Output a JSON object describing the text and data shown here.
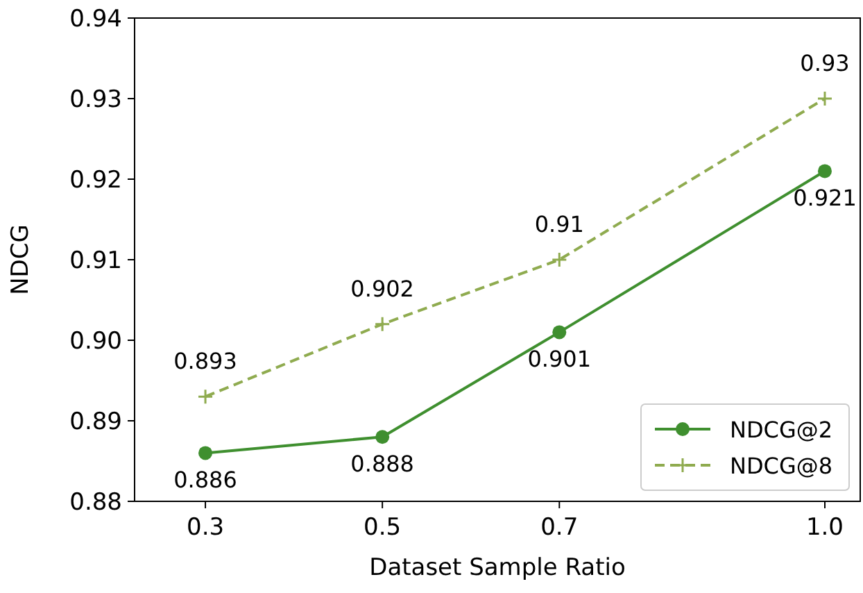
{
  "chart_data": {
    "type": "line",
    "xlabel": "Dataset Sample Ratio",
    "ylabel": "NDCG",
    "x": [
      0.3,
      0.5,
      0.7,
      1.0
    ],
    "series": [
      {
        "name": "NDCG@2",
        "color": "#3f8f2f",
        "values": [
          0.886,
          0.888,
          0.901,
          0.921
        ],
        "marker": "circle",
        "line_style": "solid"
      },
      {
        "name": "NDCG@8",
        "color": "#8fab4f",
        "values": [
          0.893,
          0.902,
          0.91,
          0.93
        ],
        "marker": "cross",
        "line_style": "dashed"
      }
    ],
    "xlim": [
      0.22,
      1.04
    ],
    "xticks": [
      {
        "value": 0.3,
        "label": "0.3"
      },
      {
        "value": 0.5,
        "label": "0.5"
      },
      {
        "value": 0.7,
        "label": "0.7"
      },
      {
        "value": 1.0,
        "label": "1.0"
      }
    ],
    "ylim": [
      0.88,
      0.94
    ],
    "yticks": [
      {
        "value": 0.88,
        "label": "0.88"
      },
      {
        "value": 0.89,
        "label": "0.89"
      },
      {
        "value": 0.9,
        "label": "0.90"
      },
      {
        "value": 0.91,
        "label": "0.91"
      },
      {
        "value": 0.92,
        "label": "0.92"
      },
      {
        "value": 0.93,
        "label": "0.93"
      },
      {
        "value": 0.94,
        "label": "0.94"
      }
    ],
    "data_labels": true,
    "legend": "bottom right",
    "grid": false
  }
}
